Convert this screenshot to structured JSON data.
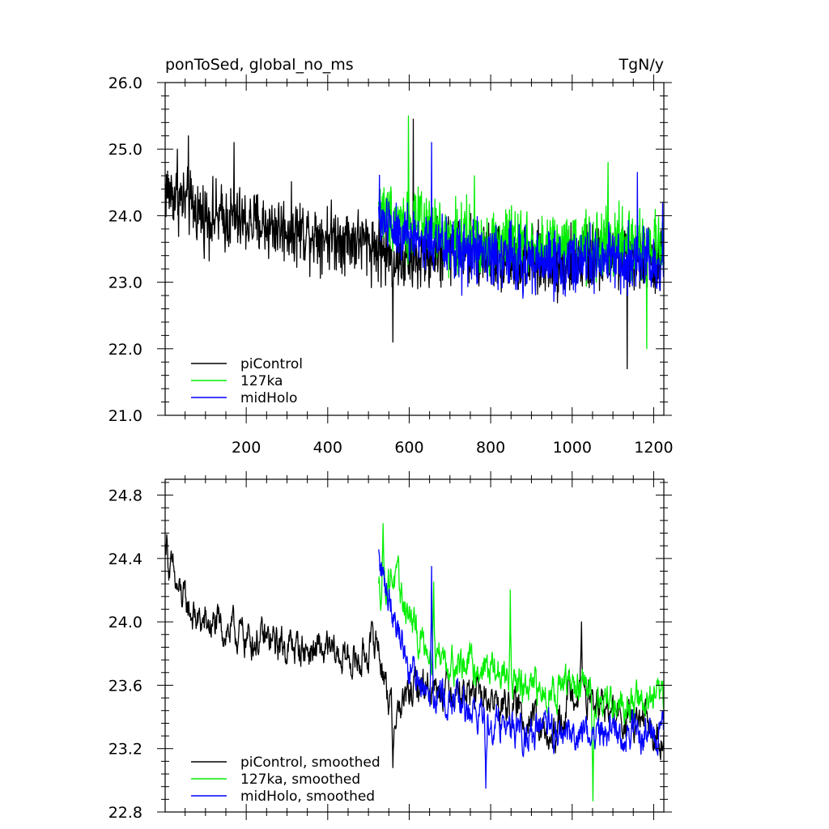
{
  "chart_data": [
    {
      "type": "line",
      "title_left": "ponToSed, global_no_ms",
      "title_right": "TgN/y",
      "xlabel": "",
      "ylabel": "",
      "xlim": [
        1,
        1225
      ],
      "ylim": [
        21.0,
        26.0
      ],
      "x_ticks": [
        200,
        400,
        600,
        800,
        1000,
        1200
      ],
      "x_tick_labels": [
        "200",
        "400",
        "600",
        "800",
        "1000",
        "1200"
      ],
      "y_ticks": [
        21.0,
        22.0,
        23.0,
        24.0,
        25.0,
        26.0
      ],
      "y_tick_labels": [
        "21.0",
        "22.0",
        "23.0",
        "24.0",
        "25.0",
        "26.0"
      ],
      "legend_position": "bottom-left",
      "series": [
        {
          "name": "piControl",
          "color": "#000000",
          "x_start": 1,
          "x_end": 1225,
          "envelope": [
            [
              1,
              24.4
            ],
            [
              100,
              24.0
            ],
            [
              200,
              23.9
            ],
            [
              300,
              23.8
            ],
            [
              400,
              23.7
            ],
            [
              500,
              23.6
            ],
            [
              550,
              23.4
            ],
            [
              600,
              23.3
            ],
            [
              700,
              23.5
            ],
            [
              800,
              23.4
            ],
            [
              900,
              23.3
            ],
            [
              1000,
              23.3
            ],
            [
              1100,
              23.4
            ],
            [
              1225,
              23.3
            ]
          ],
          "noise": 0.55,
          "spikes": [
            [
              31,
              25.0
            ],
            [
              58,
              25.2
            ],
            [
              170,
              25.1
            ],
            [
              560,
              22.1
            ],
            [
              610,
              25.45
            ],
            [
              1135,
              21.7
            ]
          ]
        },
        {
          "name": "127ka",
          "color": "#00ee00",
          "x_start": 525,
          "x_end": 1225,
          "envelope": [
            [
              525,
              24.1
            ],
            [
              600,
              23.9
            ],
            [
              700,
              23.7
            ],
            [
              800,
              23.6
            ],
            [
              900,
              23.6
            ],
            [
              1000,
              23.5
            ],
            [
              1100,
              23.6
            ],
            [
              1225,
              23.5
            ]
          ],
          "noise": 0.55,
          "spikes": [
            [
              598,
              25.5
            ],
            [
              760,
              24.6
            ],
            [
              1088,
              24.8
            ],
            [
              1183,
              22.0
            ]
          ]
        },
        {
          "name": "midHolo",
          "color": "#0000ff",
          "x_start": 525,
          "x_end": 1225,
          "envelope": [
            [
              525,
              24.0
            ],
            [
              600,
              23.7
            ],
            [
              700,
              23.5
            ],
            [
              800,
              23.4
            ],
            [
              900,
              23.3
            ],
            [
              1000,
              23.3
            ],
            [
              1100,
              23.3
            ],
            [
              1225,
              23.3
            ]
          ],
          "noise": 0.55,
          "spikes": [
            [
              655,
              25.1
            ],
            [
              1160,
              24.65
            ],
            [
              1222,
              24.2
            ]
          ]
        }
      ]
    },
    {
      "type": "line",
      "title_left": "",
      "title_right": "",
      "xlabel": "",
      "ylabel": "",
      "xlim": [
        1,
        1225
      ],
      "ylim": [
        22.8,
        24.9
      ],
      "x_ticks": [
        200,
        400,
        600,
        800,
        1000,
        1200
      ],
      "x_tick_labels": [],
      "y_ticks": [
        22.8,
        23.2,
        23.6,
        24.0,
        24.4,
        24.8
      ],
      "y_tick_labels": [
        "22.8",
        "23.2",
        "23.6",
        "24.0",
        "24.4",
        "24.8"
      ],
      "legend_position": "bottom-left",
      "series": [
        {
          "name": "piControl, smoothed",
          "color": "#000000",
          "x_start": 1,
          "x_end": 1225,
          "envelope": [
            [
              1,
              24.45
            ],
            [
              30,
              24.2
            ],
            [
              80,
              24.0
            ],
            [
              150,
              23.95
            ],
            [
              200,
              23.9
            ],
            [
              300,
              23.85
            ],
            [
              400,
              23.8
            ],
            [
              480,
              23.75
            ],
            [
              520,
              23.9
            ],
            [
              560,
              23.4
            ],
            [
              620,
              23.6
            ],
            [
              700,
              23.6
            ],
            [
              800,
              23.5
            ],
            [
              900,
              23.4
            ],
            [
              950,
              23.2
            ],
            [
              1000,
              23.6
            ],
            [
              1100,
              23.4
            ],
            [
              1225,
              23.3
            ]
          ],
          "noise": 0.16,
          "spikes": [
            [
              5,
              24.55
            ],
            [
              560,
              23.08
            ],
            [
              1023,
              24.0
            ]
          ]
        },
        {
          "name": "127ka, smoothed",
          "color": "#00ee00",
          "x_start": 525,
          "x_end": 1225,
          "envelope": [
            [
              525,
              24.2
            ],
            [
              560,
              24.3
            ],
            [
              620,
              23.9
            ],
            [
              700,
              23.75
            ],
            [
              800,
              23.7
            ],
            [
              900,
              23.55
            ],
            [
              1000,
              23.6
            ],
            [
              1100,
              23.5
            ],
            [
              1225,
              23.5
            ]
          ],
          "noise": 0.16,
          "spikes": [
            [
              536,
              24.62
            ],
            [
              660,
              24.25
            ],
            [
              848,
              24.2
            ],
            [
              1051,
              22.87
            ]
          ]
        },
        {
          "name": "midHolo, smoothed",
          "color": "#0000ff",
          "x_start": 525,
          "x_end": 1225,
          "envelope": [
            [
              525,
              24.35
            ],
            [
              560,
              24.1
            ],
            [
              600,
              23.7
            ],
            [
              700,
              23.5
            ],
            [
              800,
              23.4
            ],
            [
              900,
              23.3
            ],
            [
              1000,
              23.3
            ],
            [
              1100,
              23.3
            ],
            [
              1225,
              23.3
            ]
          ],
          "noise": 0.16,
          "spikes": [
            [
              524,
              24.5
            ],
            [
              655,
              24.35
            ],
            [
              788,
              22.95
            ]
          ]
        }
      ]
    }
  ]
}
